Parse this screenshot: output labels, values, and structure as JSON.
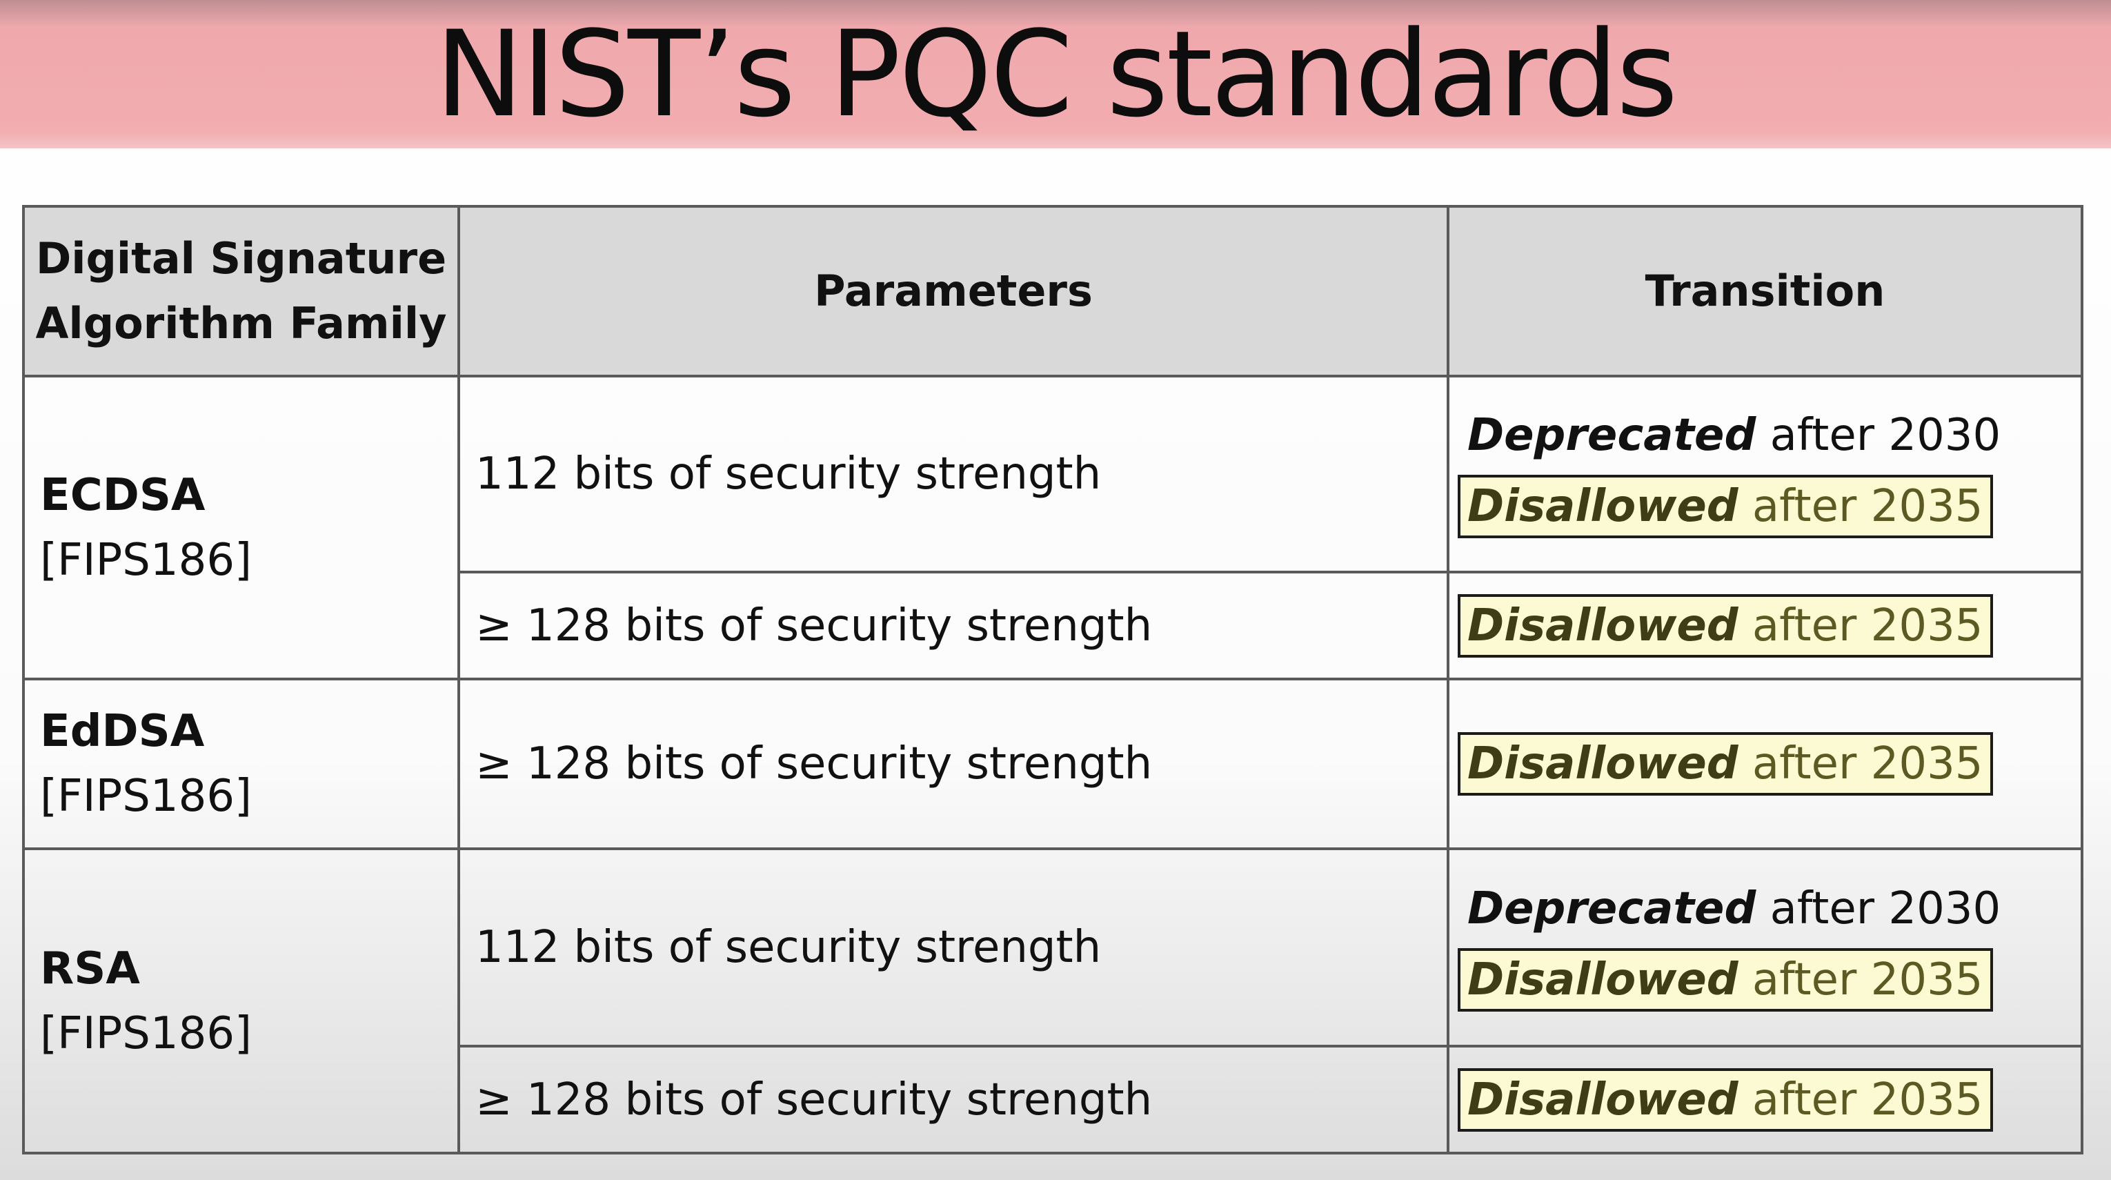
{
  "slide": {
    "title": "NIST’s PQC standards"
  },
  "table": {
    "headers": {
      "family_line1": "Digital Signature",
      "family_line2": "Algorithm Family",
      "parameters": "Parameters",
      "transition": "Transition"
    },
    "families": [
      {
        "name": "ECDSA",
        "ref": "[FIPS186]",
        "rows": [
          {
            "parameter": "112 bits of security strength",
            "deprecated_word": "Deprecated",
            "deprecated_rest": " after 2030",
            "disallowed_word": "Disallowed",
            "disallowed_rest": " after 2035"
          },
          {
            "parameter": "≥ 128 bits of security strength",
            "disallowed_word": "Disallowed",
            "disallowed_rest": " after 2035"
          }
        ]
      },
      {
        "name": "EdDSA",
        "ref": "[FIPS186]",
        "rows": [
          {
            "parameter": "≥ 128 bits of security strength",
            "disallowed_word": "Disallowed",
            "disallowed_rest": " after 2035"
          }
        ]
      },
      {
        "name": "RSA",
        "ref": "[FIPS186]",
        "rows": [
          {
            "parameter": "112 bits of security strength",
            "deprecated_word": "Deprecated",
            "deprecated_rest": " after 2030",
            "disallowed_word": "Disallowed",
            "disallowed_rest": " after 2035"
          },
          {
            "parameter": "≥ 128 bits of security strength",
            "disallowed_word": "Disallowed",
            "disallowed_rest": " after 2035"
          }
        ]
      }
    ]
  },
  "colors": {
    "title_bar": "#f2adb0",
    "header_fill": "#d9d9d9",
    "disallowed_highlight": "#fbfad2",
    "disallowed_text": "#5c5a22"
  }
}
